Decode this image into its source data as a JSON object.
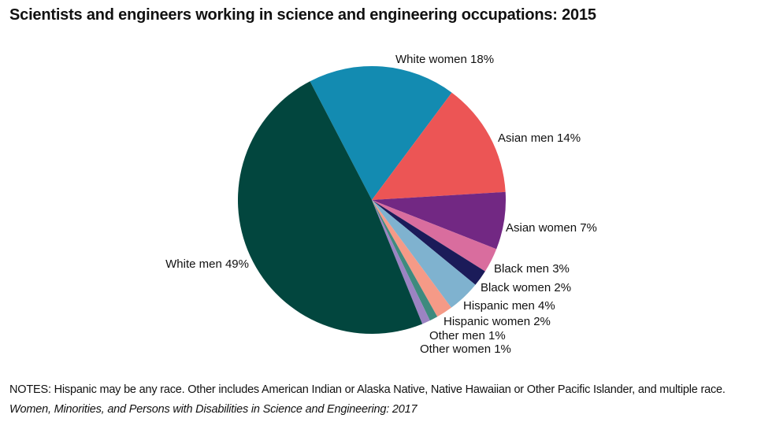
{
  "chart_data": {
    "type": "pie",
    "title": "Scientists and engineers working in science and engineering occupations: 2015",
    "slices": [
      {
        "label": "White women 18%",
        "value": 18,
        "color": "#138bb1"
      },
      {
        "label": "Asian men 14%",
        "value": 14,
        "color": "#ec5555"
      },
      {
        "label": "Asian women 7%",
        "value": 7,
        "color": "#722883"
      },
      {
        "label": "Black men 3%",
        "value": 3,
        "color": "#d96d9e"
      },
      {
        "label": "Black women 2%",
        "value": 2,
        "color": "#1b1b59"
      },
      {
        "label": "Hispanic men 4%",
        "value": 4,
        "color": "#7fb2cf"
      },
      {
        "label": "Hispanic women 2%",
        "value": 2,
        "color": "#f59a87"
      },
      {
        "label": "Other men 1%",
        "value": 1,
        "color": "#3e8a7e"
      },
      {
        "label": "Other women 1%",
        "value": 1,
        "color": "#9b83c2"
      },
      {
        "label": "White men 49%",
        "value": 49,
        "color": "#02463e"
      }
    ]
  },
  "notes": "NOTES: Hispanic may be any race. Other includes American Indian or Alaska Native, Native Hawaiian or Other Pacific Islander, and multiple race.",
  "source": "Women, Minorities, and Persons with Disabilities in Science and Engineering: 2017"
}
